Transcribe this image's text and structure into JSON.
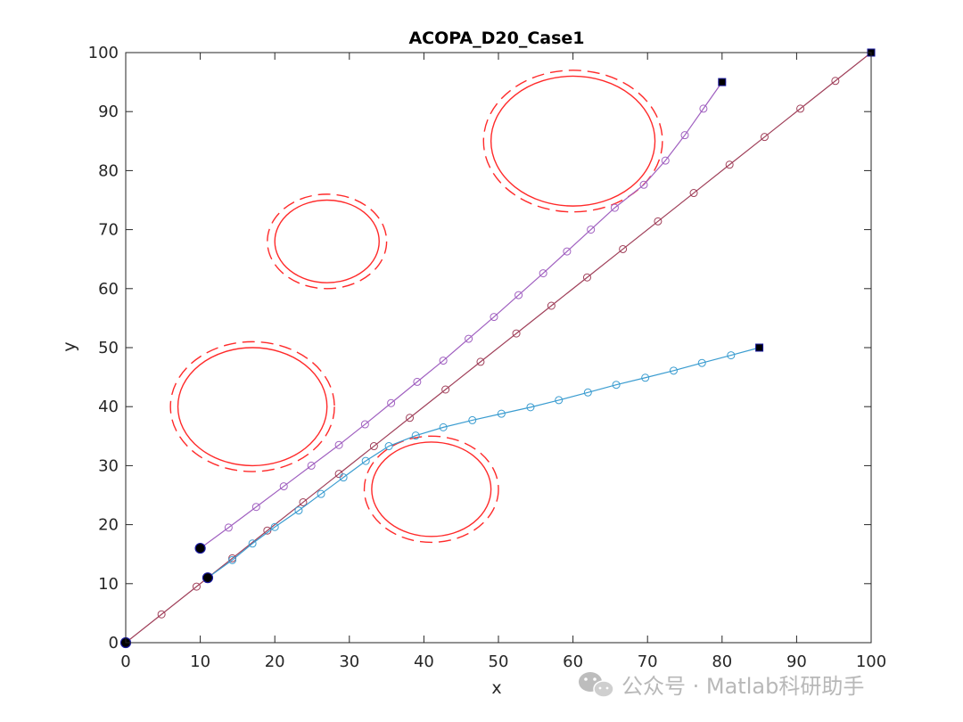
{
  "watermark": "公众号 · Matlab科研助手",
  "chart_data": {
    "type": "line",
    "title": "ACOPA_D20_Case1",
    "xlabel": "x",
    "ylabel": "y",
    "xlim": [
      0,
      100
    ],
    "ylim": [
      0,
      100
    ],
    "xticks": [
      0,
      10,
      20,
      30,
      40,
      50,
      60,
      70,
      80,
      90,
      100
    ],
    "yticks": [
      0,
      10,
      20,
      30,
      40,
      50,
      60,
      70,
      80,
      90,
      100
    ],
    "obstacles": [
      {
        "cx": 17,
        "cy": 40,
        "rx": 10,
        "ry": 10,
        "safety_rx": 11,
        "safety_ry": 11
      },
      {
        "cx": 27,
        "cy": 68,
        "rx": 7,
        "ry": 7,
        "safety_rx": 8,
        "safety_ry": 8
      },
      {
        "cx": 41,
        "cy": 26,
        "rx": 8,
        "ry": 8,
        "safety_rx": 9,
        "safety_ry": 9
      },
      {
        "cx": 60,
        "cy": 85,
        "rx": 11,
        "ry": 11,
        "safety_rx": 12,
        "safety_ry": 12
      }
    ],
    "series": [
      {
        "name": "path-1",
        "color": "#a0405a",
        "start": [
          0,
          0
        ],
        "end": [
          100,
          100
        ],
        "points": [
          [
            0,
            0
          ],
          [
            4.8,
            4.8
          ],
          [
            9.5,
            9.5
          ],
          [
            14.3,
            14.3
          ],
          [
            19.0,
            19.0
          ],
          [
            23.8,
            23.8
          ],
          [
            28.6,
            28.6
          ],
          [
            33.3,
            33.3
          ],
          [
            38.1,
            38.1
          ],
          [
            42.9,
            42.9
          ],
          [
            47.6,
            47.6
          ],
          [
            52.4,
            52.4
          ],
          [
            57.1,
            57.1
          ],
          [
            61.9,
            61.9
          ],
          [
            66.7,
            66.7
          ],
          [
            71.4,
            71.4
          ],
          [
            76.2,
            76.2
          ],
          [
            81.0,
            81.0
          ],
          [
            85.7,
            85.7
          ],
          [
            90.5,
            90.5
          ],
          [
            95.2,
            95.2
          ],
          [
            100,
            100
          ]
        ]
      },
      {
        "name": "path-2",
        "color": "#a060c0",
        "start": [
          10,
          16
        ],
        "end": [
          80,
          95
        ],
        "points": [
          [
            10,
            16
          ],
          [
            13.8,
            19.5
          ],
          [
            17.5,
            23.0
          ],
          [
            21.2,
            26.5
          ],
          [
            24.9,
            30.0
          ],
          [
            28.6,
            33.5
          ],
          [
            32.1,
            37.0
          ],
          [
            35.6,
            40.6
          ],
          [
            39.1,
            44.2
          ],
          [
            42.6,
            47.8
          ],
          [
            46.0,
            51.5
          ],
          [
            49.4,
            55.2
          ],
          [
            52.7,
            58.9
          ],
          [
            56.0,
            62.6
          ],
          [
            59.2,
            66.3
          ],
          [
            62.4,
            70.0
          ],
          [
            65.6,
            73.7
          ],
          [
            69.5,
            77.6
          ],
          [
            72.4,
            81.7
          ],
          [
            75.0,
            86.0
          ],
          [
            77.5,
            90.5
          ],
          [
            80,
            95
          ]
        ]
      },
      {
        "name": "path-3",
        "color": "#3a9cd0",
        "start": [
          11,
          11
        ],
        "end": [
          85,
          50
        ],
        "points": [
          [
            11,
            11
          ],
          [
            14.3,
            14.0
          ],
          [
            17.0,
            16.8
          ],
          [
            20.0,
            19.6
          ],
          [
            23.2,
            22.4
          ],
          [
            26.2,
            25.2
          ],
          [
            29.2,
            28.0
          ],
          [
            32.2,
            30.8
          ],
          [
            35.3,
            33.3
          ],
          [
            38.9,
            35.1
          ],
          [
            42.6,
            36.5
          ],
          [
            46.5,
            37.7
          ],
          [
            50.4,
            38.8
          ],
          [
            54.3,
            39.9
          ],
          [
            58.1,
            41.1
          ],
          [
            62.0,
            42.4
          ],
          [
            65.8,
            43.7
          ],
          [
            69.7,
            44.9
          ],
          [
            73.5,
            46.1
          ],
          [
            77.3,
            47.4
          ],
          [
            81.2,
            48.7
          ],
          [
            85,
            50
          ]
        ]
      }
    ]
  }
}
